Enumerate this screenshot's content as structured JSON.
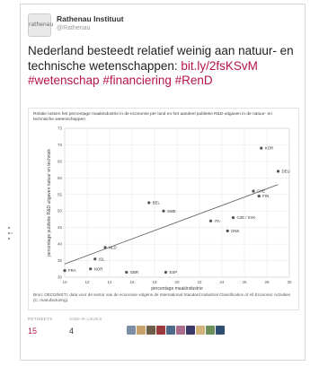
{
  "account": {
    "name": "Rathenau Instituut",
    "handle": "@Rathenau",
    "avatar_text": "rathenau"
  },
  "tweet": {
    "text_before": "Nederland besteedt relatief weinig aan natuur- en technische wetenschappen:",
    "link": "bit.ly/2fsKSvM",
    "hashtags": [
      "#wetenschap",
      "#financiering",
      "#RenD"
    ]
  },
  "chart_data": {
    "type": "scatter",
    "title": "Relatie tussen het percentage maakindustrie in de economie per land en het aandeel publieke R&D-uitgaven in de natuur- en technische wetenschappen",
    "xlabel": "percentage maakindustrie",
    "ylabel": "percentage publieke R&D uitgaven natuur en techniek",
    "xlim": [
      10,
      30
    ],
    "ylim": [
      30,
      75
    ],
    "xticks": [
      10,
      12,
      14,
      16,
      18,
      20,
      22,
      24,
      26,
      28,
      30
    ],
    "yticks": [
      30,
      35,
      40,
      45,
      50,
      55,
      60,
      65,
      70,
      75
    ],
    "points": [
      {
        "label": "KOR",
        "x": 27.5,
        "y": 69
      },
      {
        "label": "DEU",
        "x": 29,
        "y": 62
      },
      {
        "label": "CHE",
        "x": 26.8,
        "y": 56
      },
      {
        "label": "FIN",
        "x": 27.3,
        "y": 54.5
      },
      {
        "label": "BEL",
        "x": 17.5,
        "y": 52.5
      },
      {
        "label": "SWE",
        "x": 18.8,
        "y": 50
      },
      {
        "label": "CZE / SVK",
        "x": 25,
        "y": 48
      },
      {
        "label": "ITA",
        "x": 23,
        "y": 47
      },
      {
        "label": "DNK",
        "x": 24.5,
        "y": 44
      },
      {
        "label": "NLD",
        "x": 13.6,
        "y": 39
      },
      {
        "label": "ISL",
        "x": 12.7,
        "y": 35.5
      },
      {
        "label": "FRA",
        "x": 10,
        "y": 32
      },
      {
        "label": "NOR",
        "x": 12.3,
        "y": 32.5
      },
      {
        "label": "GBR",
        "x": 15.5,
        "y": 31.5
      },
      {
        "label": "ESP",
        "x": 19,
        "y": 31.5
      }
    ],
    "trendline": {
      "x": [
        10,
        29
      ],
      "y": [
        34,
        58
      ]
    },
    "footnote": "Bron: OECD/MSTI; data voor de sector van de economie volgens de International Standard Industrial Classification of All Economic Activities (C, manufacturing)."
  },
  "stats": {
    "retweets_label": "RETWEETS",
    "retweets": "15",
    "likes_label": "VIND-IK-LEUKS",
    "likes": "4"
  },
  "colors": {
    "accent": "#b5144d",
    "point": "#555555",
    "trendline": "#555555",
    "avatar_colors": [
      "#7a8fa6",
      "#c9a26b",
      "#6b5f4a",
      "#9c3b3b",
      "#4e6b8a",
      "#aa6d8e",
      "#3a3a6a",
      "#d2b37a",
      "#6d8f5a",
      "#2f4d73"
    ]
  }
}
